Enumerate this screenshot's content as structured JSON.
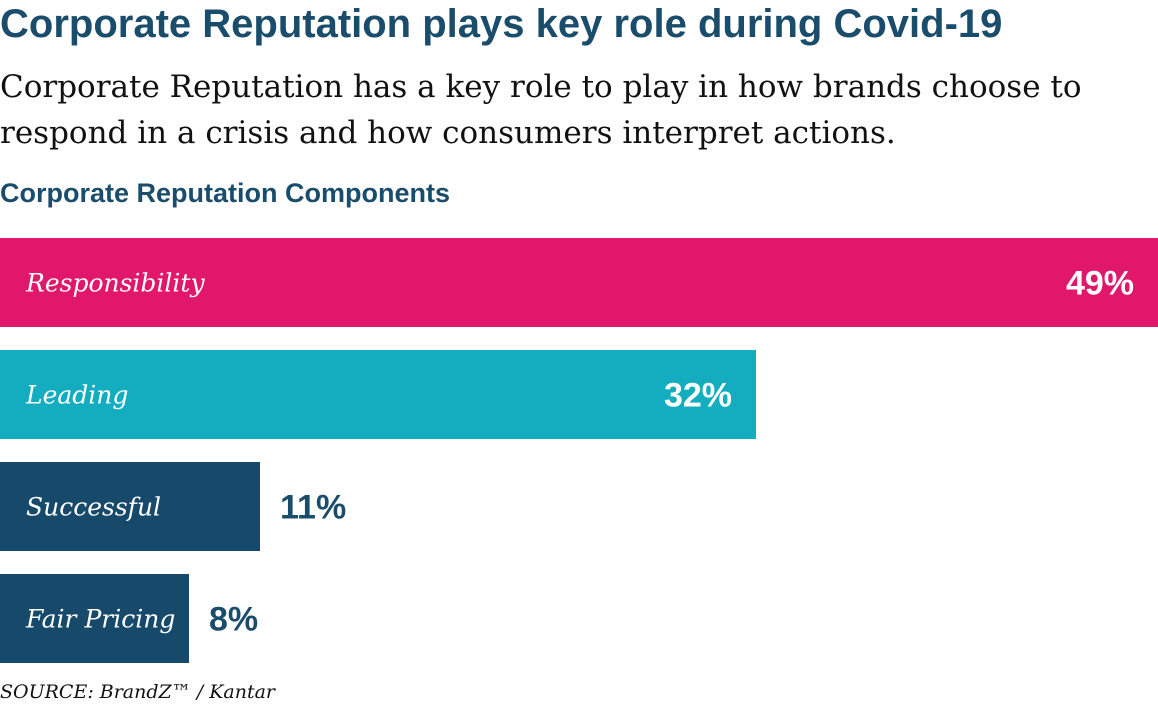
{
  "chart_data": {
    "type": "bar",
    "orientation": "horizontal",
    "title": "Corporate Reputation plays key role during Covid-19",
    "subtitle": "Corporate Reputation has a key role to play in how brands choose to respond in a crisis and how consumers interpret actions.",
    "heading": "Corporate Reputation Components",
    "categories": [
      "Responsibility",
      "Leading",
      "Successful",
      "Fair Pricing"
    ],
    "values": [
      49,
      32,
      11,
      8
    ],
    "value_labels": [
      "49%",
      "32%",
      "11%",
      "8%"
    ],
    "unit": "%",
    "colors": [
      "#e0176a",
      "#14adc0",
      "#174a6a",
      "#174a6a"
    ],
    "value_label_colors": [
      "#ffffff",
      "#ffffff",
      "#1a4d6b",
      "#1a4d6b"
    ],
    "xlim": [
      0,
      49
    ],
    "grid": false,
    "legend": "none",
    "source": "SOURCE: BrandZ™ / Kantar"
  }
}
